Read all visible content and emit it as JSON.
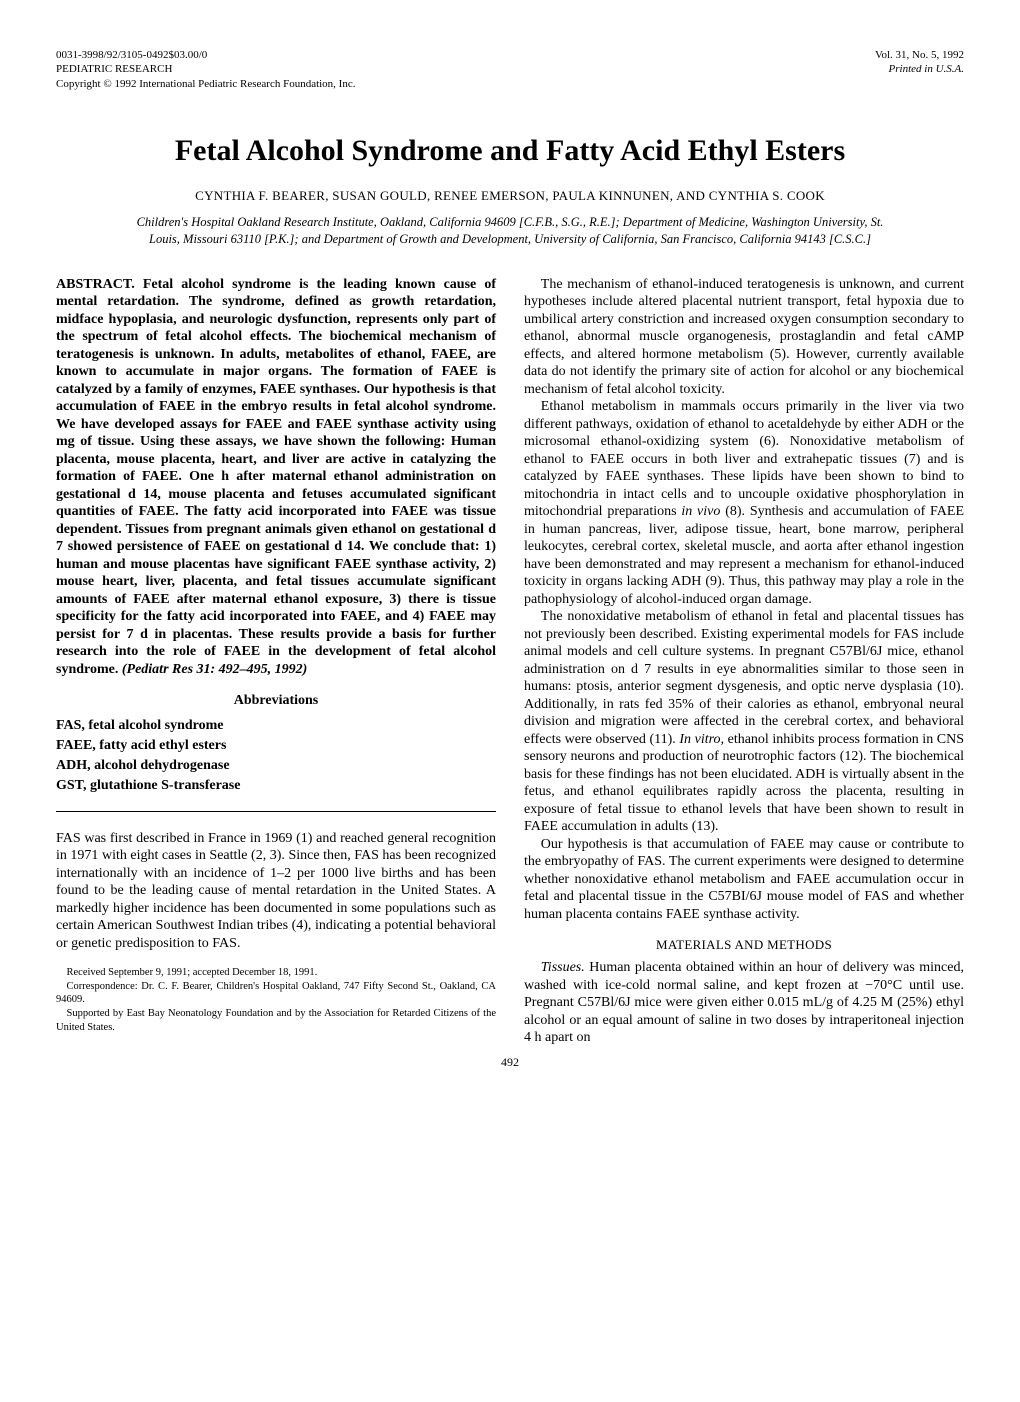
{
  "header": {
    "left_line1": "0031-3998/92/3105-0492$03.00/0",
    "left_line2": "PEDIATRIC RESEARCH",
    "left_line3": "Copyright © 1992 International Pediatric Research Foundation, Inc.",
    "right_line1": "Vol. 31, No. 5, 1992",
    "right_line2": "Printed in U.S.A."
  },
  "title": "Fetal Alcohol Syndrome and Fatty Acid Ethyl Esters",
  "authors": "CYNTHIA F. BEARER, SUSAN GOULD, RENEE EMERSON, PAULA KINNUNEN, AND CYNTHIA S. COOK",
  "affiliation": "Children's Hospital Oakland Research Institute, Oakland, California 94609 [C.F.B., S.G., R.E.]; Department of Medicine, Washington University, St. Louis, Missouri 63110 [P.K.]; and Department of Growth and Development, University of California, San Francisco, California 94143 [C.S.C.]",
  "abstract_label": "ABSTRACT.",
  "abstract_text": " Fetal alcohol syndrome is the leading known cause of mental retardation. The syndrome, defined as growth retardation, midface hypoplasia, and neurologic dysfunction, represents only part of the spectrum of fetal alcohol effects. The biochemical mechanism of teratogenesis is unknown. In adults, metabolites of ethanol, FAEE, are known to accumulate in major organs. The formation of FAEE is catalyzed by a family of enzymes, FAEE synthases. Our hypothesis is that accumulation of FAEE in the embryo results in fetal alcohol syndrome. We have developed assays for FAEE and FAEE synthase activity using mg of tissue. Using these assays, we have shown the following: Human placenta, mouse placenta, heart, and liver are active in catalyzing the formation of FAEE. One h after maternal ethanol administration on gestational d 14, mouse placenta and fetuses accumulated significant quantities of FAEE. The fatty acid incorporated into FAEE was tissue dependent. Tissues from pregnant animals given ethanol on gestational d 7 showed persistence of FAEE on gestational d 14. We conclude that: 1) human and mouse placentas have significant FAEE synthase activity, 2) mouse heart, liver, placenta, and fetal tissues accumulate significant amounts of FAEE after maternal ethanol exposure, 3) there is tissue specificity for the fatty acid incorporated into FAEE, and 4) FAEE may persist for 7 d in placentas. These results provide a basis for further research into the role of FAEE in the development of fetal alcohol syndrome. ",
  "abstract_ref": "(Pediatr Res 31: 492–495, 1992)",
  "abbrev_head": "Abbreviations",
  "abbrevs": {
    "a1": "FAS, fetal alcohol syndrome",
    "a2": "FAEE, fatty acid ethyl esters",
    "a3": "ADH, alcohol dehydrogenase",
    "a4": "GST, glutathione S-transferase"
  },
  "left_body": {
    "p1": "FAS was first described in France in 1969 (1) and reached general recognition in 1971 with eight cases in Seattle (2, 3). Since then, FAS has been recognized internationally with an incidence of 1–2 per 1000 live births and has been found to be the leading cause of mental retardation in the United States. A markedly higher incidence has been documented in some populations such as certain American Southwest Indian tribes (4), indicating a potential behavioral or genetic predisposition to FAS."
  },
  "footnotes": {
    "f1": "Received September 9, 1991; accepted December 18, 1991.",
    "f2": "Correspondence: Dr. C. F. Bearer, Children's Hospital Oakland, 747 Fifty Second St., Oakland, CA 94609.",
    "f3": "Supported by East Bay Neonatology Foundation and by the Association for Retarded Citizens of the United States."
  },
  "right_body": {
    "p1": "The mechanism of ethanol-induced teratogenesis is unknown, and current hypotheses include altered placental nutrient transport, fetal hypoxia due to umbilical artery constriction and increased oxygen consumption secondary to ethanol, abnormal muscle organogenesis, prostaglandin and fetal cAMP effects, and altered hormone metabolism (5). However, currently available data do not identify the primary site of action for alcohol or any biochemical mechanism of fetal alcohol toxicity.",
    "p2a": "Ethanol metabolism in mammals occurs primarily in the liver via two different pathways, oxidation of ethanol to acetaldehyde by either ADH or the microsomal ethanol-oxidizing system (6). Nonoxidative metabolism of ethanol to FAEE occurs in both liver and extrahepatic tissues (7) and is catalyzed by FAEE synthases. These lipids have been shown to bind to mitochondria in intact cells and to uncouple oxidative phosphorylation in mitochondrial preparations ",
    "p2_invivo": "in vivo",
    "p2b": " (8). Synthesis and accumulation of FAEE in human pancreas, liver, adipose tissue, heart, bone marrow, peripheral leukocytes, cerebral cortex, skeletal muscle, and aorta after ethanol ingestion have been demonstrated and may represent a mechanism for ethanol-induced toxicity in organs lacking ADH (9). Thus, this pathway may play a role in the pathophysiology of alcohol-induced organ damage.",
    "p3a": "The nonoxidative metabolism of ethanol in fetal and placental tissues has not previously been described. Existing experimental models for FAS include animal models and cell culture systems. In pregnant C57Bl/6J mice, ethanol administration on d 7 results in eye abnormalities similar to those seen in humans: ptosis, anterior segment dysgenesis, and optic nerve dysplasia (10). Additionally, in rats fed 35% of their calories as ethanol, embryonal neural division and migration were affected in the cerebral cortex, and behavioral effects were observed (11). ",
    "p3_invitro": "In vitro,",
    "p3b": " ethanol inhibits process formation in CNS sensory neurons and production of neurotrophic factors (12). The biochemical basis for these findings has not been elucidated. ADH is virtually absent in the fetus, and ethanol equilibrates rapidly across the placenta, resulting in exposure of fetal tissue to ethanol levels that have been shown to result in FAEE accumulation in adults (13).",
    "p4": "Our hypothesis is that accumulation of FAEE may cause or contribute to the embryopathy of FAS. The current experiments were designed to determine whether nonoxidative ethanol metabolism and FAEE accumulation occur in fetal and placental tissue in the C57BI/6J mouse model of FAS and whether human placenta contains FAEE synthase activity."
  },
  "methods_head": "MATERIALS AND METHODS",
  "methods": {
    "label": "Tissues.",
    "text": " Human placenta obtained within an hour of delivery was minced, washed with ice-cold normal saline, and kept frozen at −70°C until use. Pregnant C57Bl/6J mice were given either 0.015 mL/g of 4.25 M (25%) ethyl alcohol or an equal amount of saline in two doses by intraperitoneal injection 4 h apart on"
  },
  "page_number": "492"
}
